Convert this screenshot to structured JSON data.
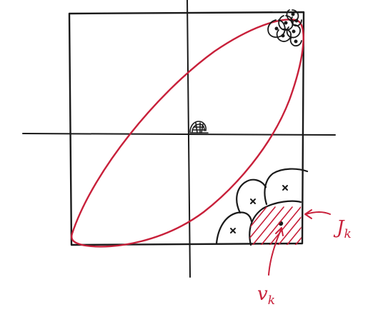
{
  "labels": {
    "j_main": "J",
    "j_sub": "k",
    "v_main": "v",
    "v_sub": "k"
  },
  "colors": {
    "ink": "#1a1a1a",
    "accent": "#c8203a"
  }
}
